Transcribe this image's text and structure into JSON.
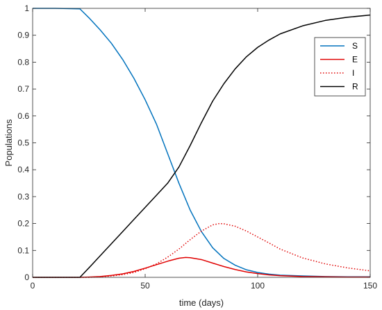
{
  "chart_data": {
    "type": "line",
    "title": "",
    "xlabel": "time (days)",
    "ylabel": "Populations",
    "xlim": [
      0,
      150
    ],
    "ylim": [
      0,
      1
    ],
    "xticks": [
      "0",
      "50",
      "100",
      "150"
    ],
    "yticks": [
      "0",
      "0.1",
      "0.2",
      "0.3",
      "0.4",
      "0.5",
      "0.6",
      "0.7",
      "0.8",
      "0.9",
      "1"
    ],
    "grid": false,
    "legend_position": "top-right",
    "series": [
      {
        "name": "S",
        "color": "#0072BD",
        "style": "solid",
        "x": [
          0,
          10,
          21,
          25,
          30,
          35,
          40,
          45,
          50,
          55,
          60,
          65,
          70,
          75,
          80,
          85,
          90,
          95,
          100,
          105,
          110,
          120,
          130,
          140,
          150
        ],
        "y": [
          1.0,
          1.0,
          0.998,
          0.965,
          0.92,
          0.87,
          0.81,
          0.74,
          0.66,
          0.57,
          0.46,
          0.35,
          0.25,
          0.17,
          0.11,
          0.07,
          0.045,
          0.028,
          0.018,
          0.012,
          0.008,
          0.005,
          0.003,
          0.002,
          0.002
        ]
      },
      {
        "name": "E",
        "color": "#E00000",
        "style": "solid",
        "x": [
          0,
          21,
          25,
          30,
          35,
          40,
          45,
          50,
          55,
          60,
          65,
          68,
          70,
          75,
          80,
          85,
          90,
          95,
          100,
          105,
          110,
          120,
          130,
          140,
          150
        ],
        "y": [
          0,
          0,
          0.001,
          0.003,
          0.007,
          0.013,
          0.022,
          0.034,
          0.047,
          0.06,
          0.071,
          0.074,
          0.073,
          0.066,
          0.053,
          0.04,
          0.029,
          0.02,
          0.014,
          0.009,
          0.006,
          0.003,
          0.002,
          0.001,
          0.001
        ]
      },
      {
        "name": "I",
        "color": "#E00000",
        "style": "dotted",
        "x": [
          0,
          21,
          25,
          30,
          35,
          40,
          45,
          50,
          55,
          60,
          65,
          70,
          75,
          80,
          83,
          85,
          90,
          95,
          100,
          105,
          110,
          120,
          130,
          140,
          150
        ],
        "y": [
          0,
          0,
          0.0,
          0.002,
          0.005,
          0.01,
          0.018,
          0.032,
          0.05,
          0.075,
          0.105,
          0.14,
          0.172,
          0.195,
          0.2,
          0.199,
          0.19,
          0.172,
          0.15,
          0.128,
          0.105,
          0.072,
          0.05,
          0.035,
          0.024
        ]
      },
      {
        "name": "R",
        "color": "#000000",
        "style": "solid",
        "x": [
          0,
          21,
          25,
          30,
          35,
          40,
          45,
          50,
          55,
          60,
          65,
          70,
          75,
          80,
          85,
          90,
          95,
          100,
          105,
          110,
          120,
          130,
          140,
          150
        ],
        "y": [
          0,
          0,
          0.035,
          0.08,
          0.125,
          0.17,
          0.215,
          0.26,
          0.305,
          0.35,
          0.41,
          0.49,
          0.575,
          0.655,
          0.72,
          0.775,
          0.82,
          0.855,
          0.882,
          0.905,
          0.935,
          0.955,
          0.967,
          0.975
        ]
      }
    ]
  }
}
